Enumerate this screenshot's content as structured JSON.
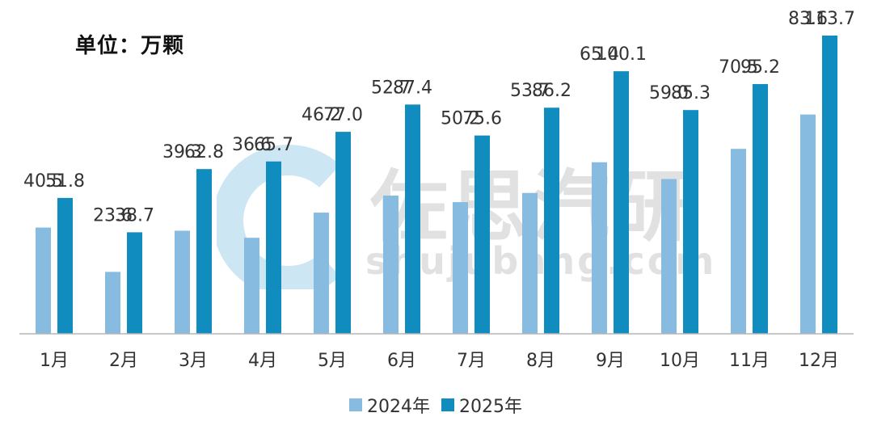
{
  "unit_label": "单位：万颗",
  "watermark": {
    "name_cn": "佐思汽研",
    "site": "shujubang.com"
  },
  "colors": {
    "s2024": "#88bbe0",
    "s2025": "#108cbf",
    "axis": "#b5b5b5",
    "label": "#333333"
  },
  "chart_data": {
    "type": "bar",
    "categories": [
      "1月",
      "2月",
      "3月",
      "4月",
      "5月",
      "6月",
      "7月",
      "8月",
      "9月",
      "10月",
      "11月",
      "12月"
    ],
    "series": [
      {
        "name": "2024年",
        "values": [
          40.5,
          23.6,
          39.3,
          36.6,
          46.2,
          52.7,
          50.2,
          53.7,
          65.4,
          59.0,
          70.5,
          83.6
        ]
      },
      {
        "name": "2025年",
        "values": [
          51.8,
          38.7,
          62.8,
          65.7,
          77.0,
          87.4,
          75.6,
          86.2,
          100.1,
          85.3,
          95.2,
          113.7
        ]
      }
    ],
    "ylim": [
      0,
      113.7
    ],
    "grid": false,
    "legend_position": "bottom"
  }
}
